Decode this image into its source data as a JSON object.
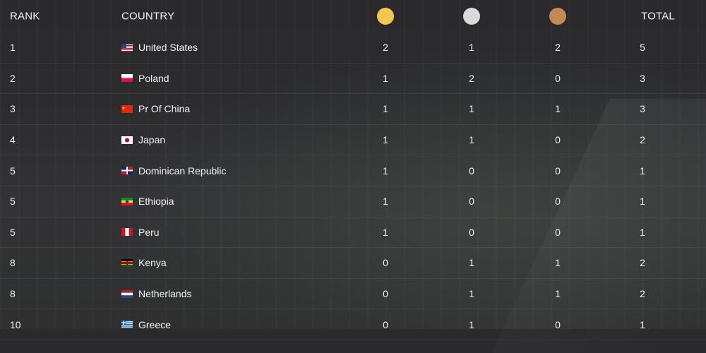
{
  "header": {
    "rank_label": "RANK",
    "country_label": "COUNTRY",
    "total_label": "TOTAL",
    "gold_color": "#f2c94c",
    "silver_color": "#d9d9d9",
    "bronze_color": "#c48a55"
  },
  "rows": [
    {
      "rank": "1",
      "country": "United States",
      "flag": "us-flag-icon",
      "gold": "2",
      "silver": "1",
      "bronze": "2",
      "total": "5"
    },
    {
      "rank": "2",
      "country": "Poland",
      "flag": "pl-flag-icon",
      "gold": "1",
      "silver": "2",
      "bronze": "0",
      "total": "3"
    },
    {
      "rank": "3",
      "country": "Pr Of China",
      "flag": "cn-flag-icon",
      "gold": "1",
      "silver": "1",
      "bronze": "1",
      "total": "3"
    },
    {
      "rank": "4",
      "country": "Japan",
      "flag": "jp-flag-icon",
      "gold": "1",
      "silver": "1",
      "bronze": "0",
      "total": "2"
    },
    {
      "rank": "5",
      "country": "Dominican Republic",
      "flag": "do-flag-icon",
      "gold": "1",
      "silver": "0",
      "bronze": "0",
      "total": "1"
    },
    {
      "rank": "5",
      "country": "Ethiopia",
      "flag": "et-flag-icon",
      "gold": "1",
      "silver": "0",
      "bronze": "0",
      "total": "1"
    },
    {
      "rank": "5",
      "country": "Peru",
      "flag": "pe-flag-icon",
      "gold": "1",
      "silver": "0",
      "bronze": "0",
      "total": "1"
    },
    {
      "rank": "8",
      "country": "Kenya",
      "flag": "ke-flag-icon",
      "gold": "0",
      "silver": "1",
      "bronze": "1",
      "total": "2"
    },
    {
      "rank": "8",
      "country": "Netherlands",
      "flag": "nl-flag-icon",
      "gold": "0",
      "silver": "1",
      "bronze": "1",
      "total": "2"
    },
    {
      "rank": "10",
      "country": "Greece",
      "flag": "gr-flag-icon",
      "gold": "0",
      "silver": "1",
      "bronze": "0",
      "total": "1"
    }
  ]
}
